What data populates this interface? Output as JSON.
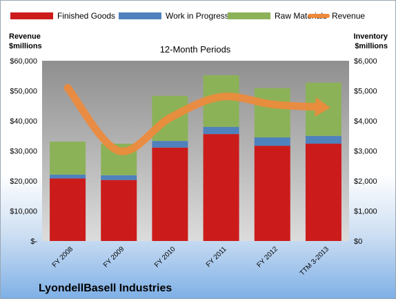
{
  "chart_data": {
    "type": "bar",
    "stacked": true,
    "subtitle": "12-Month Periods",
    "company": "LyondellBasell Industries",
    "categories": [
      "FY 2008",
      "FY 2009",
      "FY 2010",
      "FY 2011",
      "FY 2012",
      "TTM 3-2013"
    ],
    "series": [
      {
        "name": "Finished Goods",
        "color": "#cc1b1b",
        "axis": "right",
        "values": [
          2080,
          2030,
          3110,
          3560,
          3170,
          3240
        ]
      },
      {
        "name": "Work in Progress",
        "color": "#4f81bd",
        "axis": "right",
        "values": [
          130,
          160,
          220,
          240,
          280,
          260
        ]
      },
      {
        "name": "Raw Materials",
        "color": "#8cb258",
        "axis": "right",
        "values": [
          1100,
          1050,
          1500,
          1720,
          1640,
          1770
        ]
      },
      {
        "name": "Revenue",
        "type": "line",
        "color": "#ee8a3c",
        "axis": "left",
        "values": [
          51000,
          30000,
          41000,
          48000,
          45500,
          44500
        ]
      }
    ],
    "left_axis": {
      "title_line1": "Revenue",
      "title_line2": "$millions",
      "ylim": [
        0,
        60000
      ],
      "ticks": [
        "$-",
        "$10,000",
        "$20,000",
        "$30,000",
        "$40,000",
        "$50,000",
        "$60,000"
      ]
    },
    "right_axis": {
      "title_line1": "Inventory",
      "title_line2": "$millions",
      "ylim": [
        0,
        6000
      ],
      "ticks": [
        "$0",
        "$1,000",
        "$2,000",
        "$3,000",
        "$4,000",
        "$5,000",
        "$6,000"
      ]
    },
    "legend_position": "top",
    "grid": false
  }
}
